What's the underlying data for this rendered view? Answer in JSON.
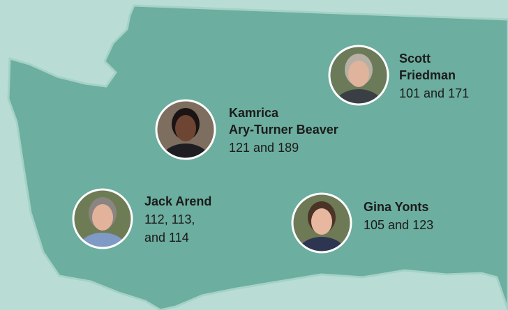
{
  "people": [
    {
      "name_lines": [
        "Scott",
        "Friedman"
      ],
      "detail_lines": [
        "101 and 171"
      ]
    },
    {
      "name_lines": [
        "Kamrica",
        "Ary-Turner Beaver"
      ],
      "detail_lines": [
        "121 and 189"
      ]
    },
    {
      "name_lines": [
        "Jack Arend"
      ],
      "detail_lines": [
        "112, 113,",
        "and 114"
      ]
    },
    {
      "name_lines": [
        "Gina Yonts"
      ],
      "detail_lines": [
        "105 and 123"
      ]
    }
  ]
}
